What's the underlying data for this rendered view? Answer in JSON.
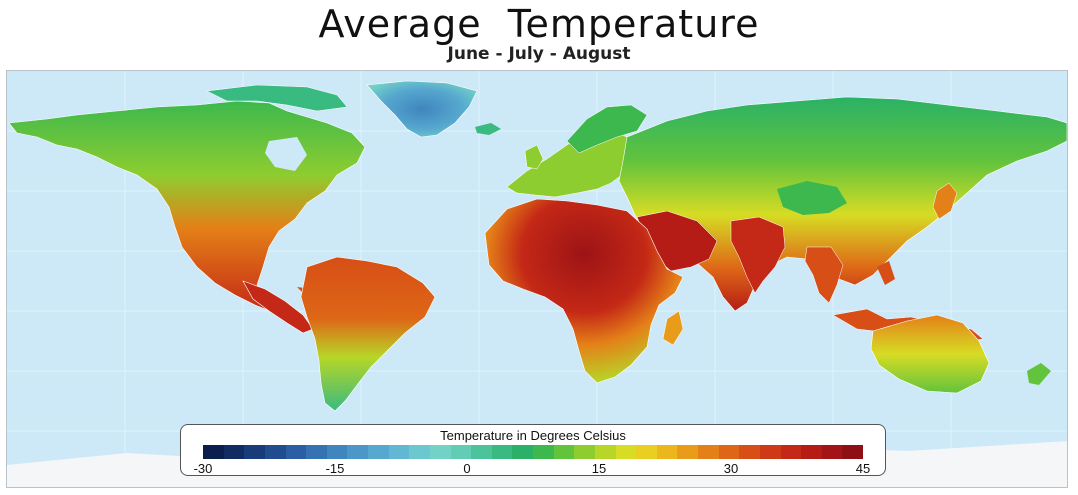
{
  "header": {
    "title": "Average  Temperature",
    "subtitle": "June - July - August"
  },
  "legend": {
    "title": "Temperature in Degrees Celsius",
    "ticks": [
      "-30",
      "-15",
      "0",
      "15",
      "30",
      "45"
    ],
    "range": [
      -30,
      45
    ],
    "colors": [
      "#0b1f4f",
      "#112c63",
      "#183c79",
      "#1f4d8f",
      "#2a5fa3",
      "#3472b1",
      "#3f85be",
      "#4a97c8",
      "#56a8cf",
      "#62b8d2",
      "#6cc7d0",
      "#73d2c6",
      "#63ccb4",
      "#4cc39b",
      "#39ba80",
      "#2bb167",
      "#3cb84e",
      "#62c33c",
      "#8ecd2f",
      "#b7d627",
      "#d7dc24",
      "#e8cf21",
      "#ecb71d",
      "#e99c19",
      "#e48018",
      "#de6717",
      "#d74e16",
      "#cf3a16",
      "#c42816",
      "#b51c16",
      "#a31416",
      "#8e1015"
    ]
  },
  "map": {
    "ocean_color": "#cde9f8",
    "ice_color": "#f4f6f8"
  }
}
